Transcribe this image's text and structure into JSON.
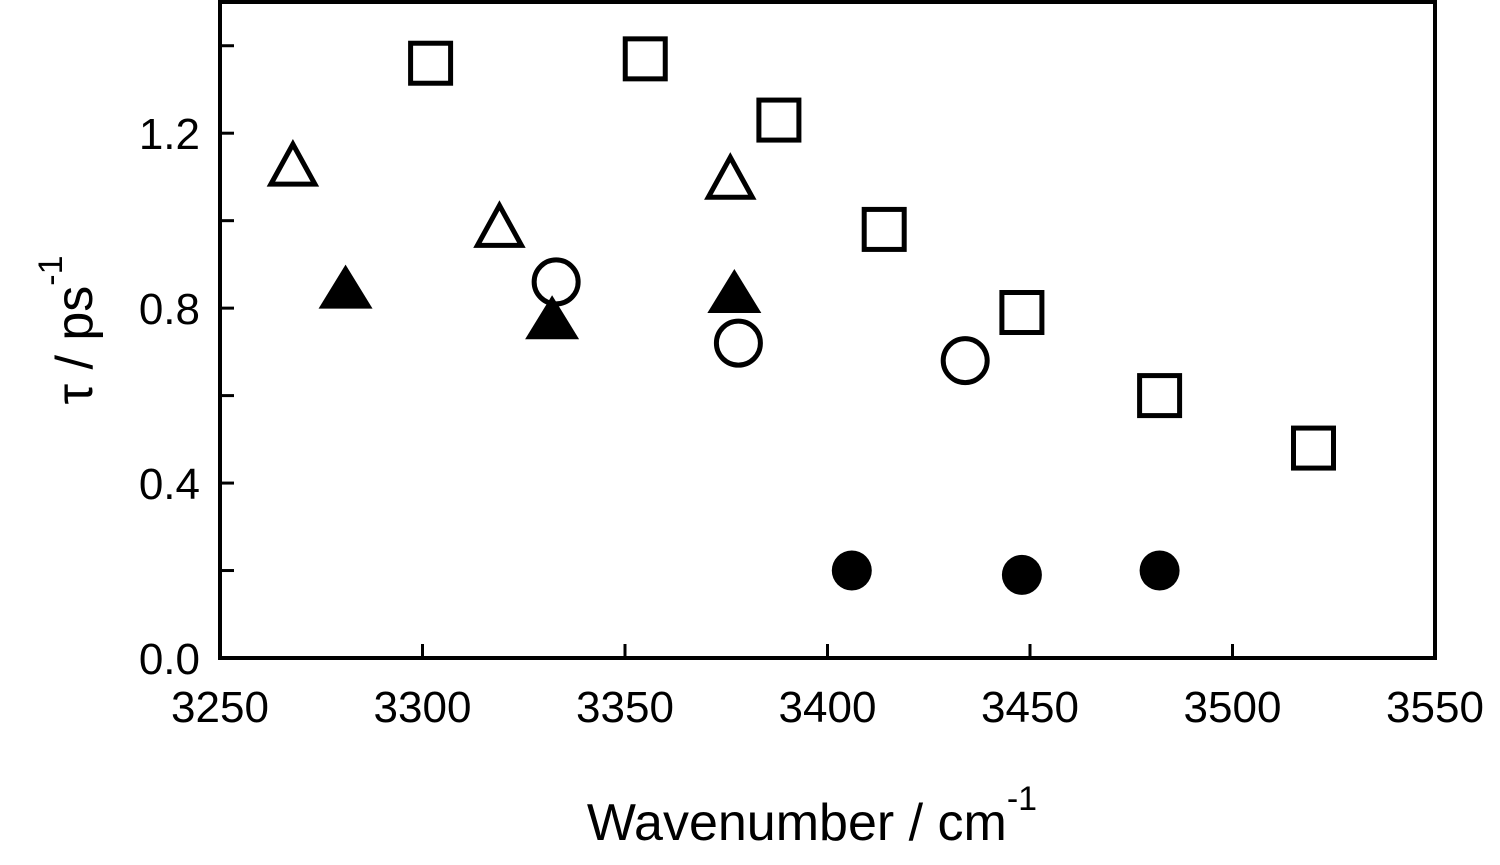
{
  "chart_data": {
    "type": "scatter",
    "title": "",
    "xlabel": "Wavenumber / cm",
    "xlabel_sup": "-1",
    "ylabel": "τ / ps",
    "ylabel_sup": "-1",
    "xlim": [
      3250,
      3550
    ],
    "ylim": [
      0.0,
      1.5
    ],
    "xticks": [
      3250,
      3300,
      3350,
      3400,
      3450,
      3500,
      3550
    ],
    "xtick_labels": [
      "3250",
      "3300",
      "3350",
      "3400",
      "3450",
      "3500",
      "3550"
    ],
    "yticks": [
      0.0,
      0.2,
      0.4,
      0.6,
      0.8,
      1.0,
      1.2,
      1.4
    ],
    "ytick_labels": [
      "0.0",
      "",
      "0.4",
      "",
      "0.8",
      "",
      "1.2",
      ""
    ],
    "grid": false,
    "legend": "none",
    "series": [
      {
        "marker": "open-square",
        "points": [
          [
            3302,
            1.36
          ],
          [
            3355,
            1.37
          ],
          [
            3388,
            1.23
          ],
          [
            3414,
            0.98
          ],
          [
            3448,
            0.79
          ],
          [
            3482,
            0.6
          ],
          [
            3520,
            0.48
          ]
        ]
      },
      {
        "marker": "open-triangle",
        "points": [
          [
            3268,
            1.12
          ],
          [
            3319,
            0.98
          ],
          [
            3376,
            1.09
          ]
        ]
      },
      {
        "marker": "filled-triangle",
        "points": [
          [
            3281,
            0.84
          ],
          [
            3332,
            0.77
          ],
          [
            3377,
            0.83
          ]
        ]
      },
      {
        "marker": "open-circle",
        "points": [
          [
            3333,
            0.86
          ],
          [
            3378,
            0.72
          ],
          [
            3434,
            0.68
          ]
        ]
      },
      {
        "marker": "filled-circle",
        "points": [
          [
            3406,
            0.2
          ],
          [
            3448,
            0.19
          ],
          [
            3482,
            0.2
          ]
        ]
      }
    ]
  }
}
